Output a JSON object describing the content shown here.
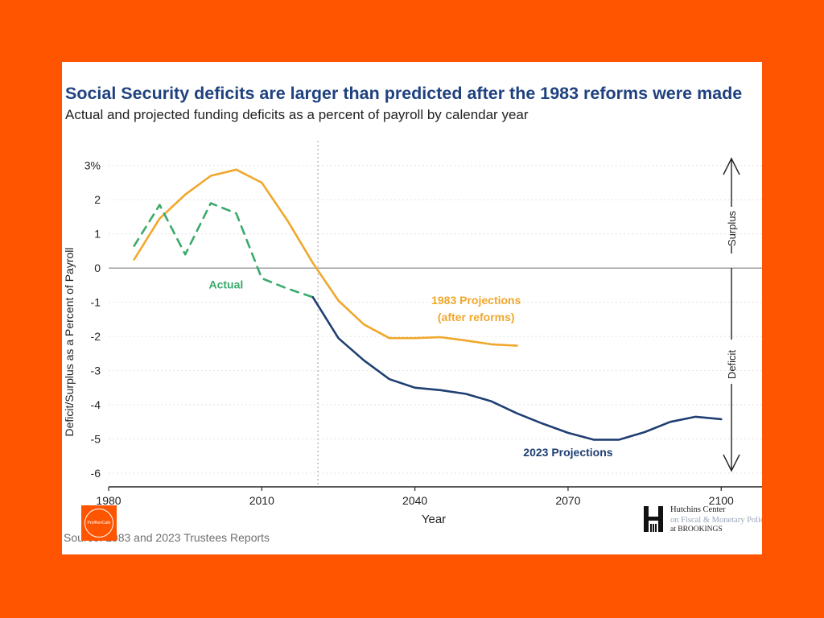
{
  "colors": {
    "background": "#ff5400",
    "card": "#ffffff",
    "title": "#1f4180",
    "series_1983": "#f0a72c",
    "series_2023": "#1f3f73",
    "series_actual": "#3aaa6b",
    "zero_line": "#9a9a9a",
    "grid": "#e2e2e2"
  },
  "stamp": {
    "text": "ProfRenCafe"
  },
  "logo": {
    "name": "Hutchins Center",
    "sub": "on Fiscal & Monetary Policy",
    "org": "at BROOKINGS"
  },
  "source_text": "Source: 1983 and 2023 Trustees Reports",
  "chart_data": {
    "type": "line",
    "title": "Social Security deficits are larger than predicted after the 1983 reforms were made",
    "subtitle": "Actual and projected funding deficits as a percent of payroll by calendar year",
    "xlabel": "Year",
    "ylabel": "Deficit/Surplus as a Percent of Payroll",
    "xlim": [
      1980,
      2108
    ],
    "ylim": [
      -6.4,
      3.3
    ],
    "x_ticks": [
      1980,
      2010,
      2040,
      2070,
      2100
    ],
    "y_ticks": [
      3,
      2,
      1,
      0,
      -1,
      -2,
      -3,
      -4,
      -5,
      -6
    ],
    "y_tick_labels": [
      "3%",
      "2",
      "1",
      "0",
      "-1",
      "-2",
      "-3",
      "-4",
      "-5",
      "-6"
    ],
    "grid": "horizontal dotted",
    "vertical_marker_x": 2021,
    "right_annotations": {
      "surplus": "Surplus",
      "deficit": "Deficit"
    },
    "series": [
      {
        "name": "1983 Projections (after reforms)",
        "label_lines": [
          "1983 Projections",
          "(after reforms)"
        ],
        "style": "solid",
        "x": [
          1985,
          1990,
          1995,
          2000,
          2005,
          2010,
          2015,
          2020,
          2025,
          2030,
          2035,
          2040,
          2045,
          2050,
          2055,
          2060
        ],
        "y": [
          0.25,
          1.45,
          2.15,
          2.7,
          2.88,
          2.5,
          1.4,
          0.15,
          -0.95,
          -1.65,
          -2.05,
          -2.05,
          -2.02,
          -2.12,
          -2.23,
          -2.27
        ]
      },
      {
        "name": "Actual",
        "label_lines": [
          "Actual"
        ],
        "style": "dashed",
        "x": [
          1985,
          1990,
          1995,
          2000,
          2005,
          2010,
          2015,
          2020
        ],
        "y": [
          0.65,
          1.85,
          0.4,
          1.9,
          1.6,
          -0.3,
          -0.6,
          -0.85
        ]
      },
      {
        "name": "2023 Projections",
        "label_lines": [
          "2023 Projections"
        ],
        "style": "solid",
        "x": [
          2020,
          2025,
          2030,
          2035,
          2040,
          2045,
          2050,
          2055,
          2060,
          2065,
          2070,
          2075,
          2080,
          2085,
          2090,
          2095,
          2100
        ],
        "y": [
          -0.85,
          -2.05,
          -2.7,
          -3.25,
          -3.5,
          -3.57,
          -3.68,
          -3.9,
          -4.25,
          -4.55,
          -4.82,
          -5.02,
          -5.02,
          -4.8,
          -4.5,
          -4.35,
          -4.42
        ]
      }
    ]
  }
}
